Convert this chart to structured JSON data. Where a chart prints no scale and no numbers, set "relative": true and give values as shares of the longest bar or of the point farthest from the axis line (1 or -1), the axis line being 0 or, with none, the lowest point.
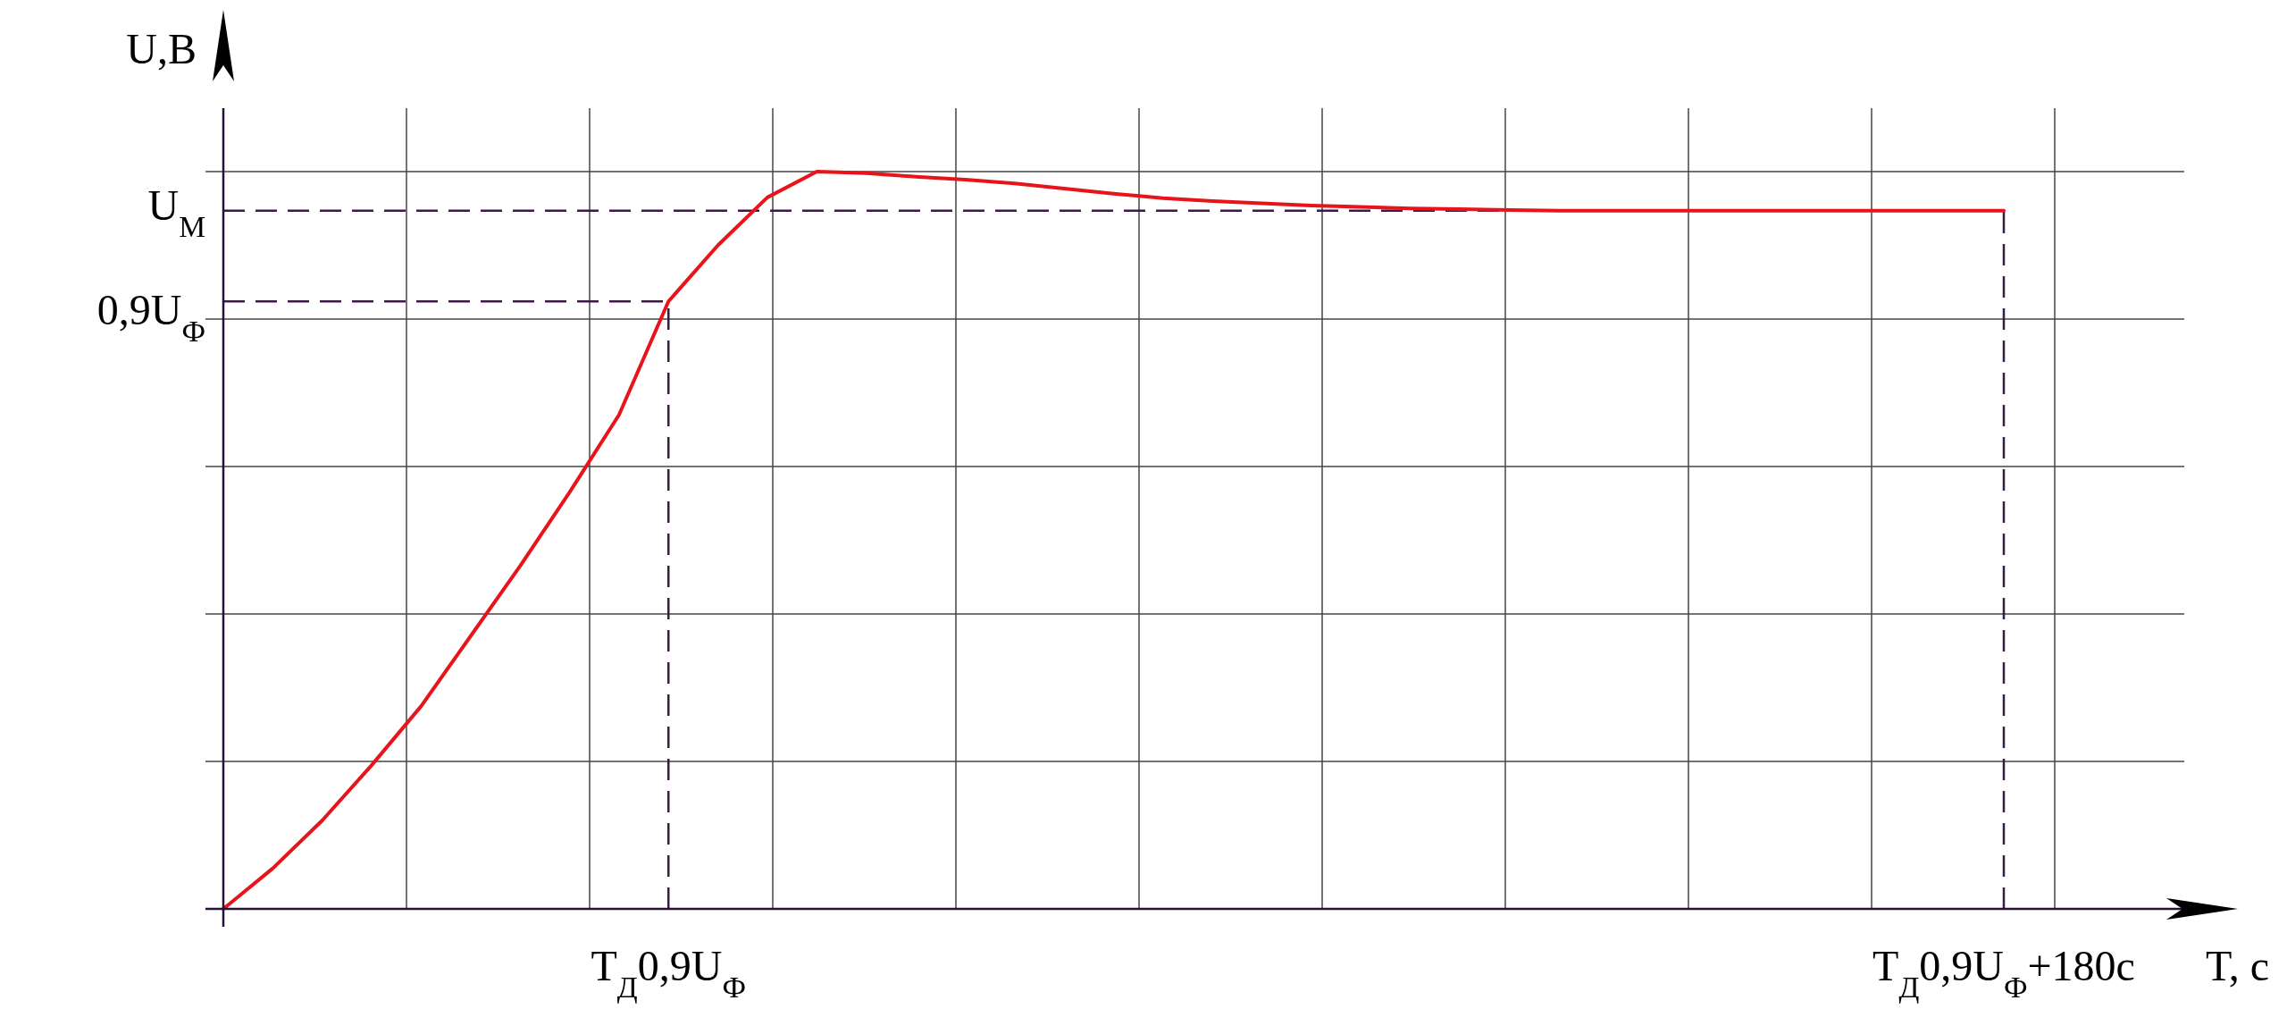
{
  "chart_data": {
    "type": "line",
    "xlabel": "T, с",
    "ylabel": "U,В",
    "relative": true,
    "grid": true,
    "categories": [
      null,
      null,
      null,
      null,
      null,
      null,
      null,
      null,
      null,
      "T$_{Д}$0,9U$_{Ф}$",
      null,
      null,
      null,
      null,
      null,
      null,
      null,
      null,
      null,
      null,
      null,
      null,
      null,
      null,
      null,
      null,
      null,
      null,
      null,
      null,
      null,
      null,
      null,
      null,
      null,
      null,
      "T$_{Д}$0,9U$_{Ф}$+180с"
    ],
    "series": [
      {
        "color": "#e8141c",
        "values": [
          0,
          0.055,
          0.12,
          0.195,
          0.275,
          0.37,
          0.465,
          0.565,
          0.67,
          0.824,
          0.9,
          0.965,
          1,
          0.998,
          0.993,
          0.989,
          0.984,
          0.977,
          0.97,
          0.964,
          0.96,
          0.957,
          0.954,
          0.952,
          0.95,
          0.949,
          0.948,
          0.947,
          0.947,
          0.947,
          0.947,
          0.947,
          0.947,
          0.947,
          0.947,
          0.947,
          0.947
        ]
      }
    ],
    "ref_lines": [
      {
        "axis": "y",
        "value": 0.947,
        "label": "U$_{М}$",
        "color": "#3c1a46",
        "line_style": "dashed"
      },
      {
        "axis": "y",
        "value": 0.824,
        "label": "0,9U$_{Ф}$",
        "color": "#3c1a46",
        "line_style": "dashed"
      },
      {
        "axis": "x",
        "value": "T$_{Д}$0,9U$_{Ф}$+180с",
        "color": "#3c1a46",
        "line_style": "dashed"
      },
      {
        "axis": "x",
        "value": "T$_{Д}$0,9U$_{Ф}$",
        "color": "#3c1a46",
        "line_style": "dashed"
      }
    ]
  }
}
